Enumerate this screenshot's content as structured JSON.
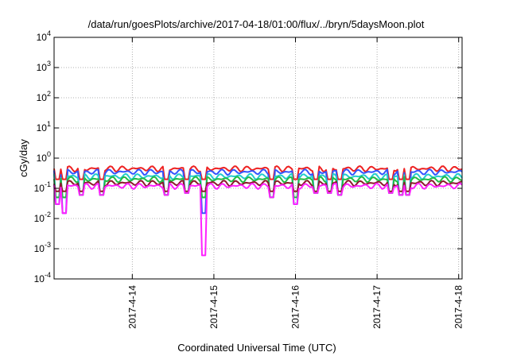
{
  "chart_data": {
    "type": "line",
    "title": "/data/run/goesPlots/archive/2017-04-18/01:00/flux/../bryn/5daysMoon.plot",
    "xlabel": "Coordinated Universal Time (UTC)",
    "ylabel": "cGy/day",
    "y_scale": "log",
    "ylim": [
      0.0001,
      10000
    ],
    "xlim": [
      "2017-04-13 01:00",
      "2017-04-18 01:00"
    ],
    "grid": true,
    "y_ticks": [
      {
        "value": 0.0001,
        "base": "10",
        "exp": "-4"
      },
      {
        "value": 0.001,
        "base": "10",
        "exp": "-3"
      },
      {
        "value": 0.01,
        "base": "10",
        "exp": "-2"
      },
      {
        "value": 0.1,
        "base": "10",
        "exp": "-1"
      },
      {
        "value": 1,
        "base": "10",
        "exp": "0"
      },
      {
        "value": 10,
        "base": "10",
        "exp": "1"
      },
      {
        "value": 100,
        "base": "10",
        "exp": "2"
      },
      {
        "value": 1000,
        "base": "10",
        "exp": "3"
      },
      {
        "value": 10000,
        "base": "10",
        "exp": "4"
      }
    ],
    "x_ticks": [
      {
        "value": "2017-04-14 00:00",
        "label": "2017-4-14"
      },
      {
        "value": "2017-04-15 00:00",
        "label": "2017-4-15"
      },
      {
        "value": "2017-04-16 00:00",
        "label": "2017-4-16"
      },
      {
        "value": "2017-04-17 00:00",
        "label": "2017-4-17"
      },
      {
        "value": "2017-04-18 00:00",
        "label": "2017-4-18"
      }
    ],
    "series": [
      {
        "color": "#ee2222",
        "baseline": 0.45,
        "dip_floor": 0.2
      },
      {
        "color": "#3355ff",
        "baseline": 0.35,
        "dip_floor": 0.015
      },
      {
        "color": "#22cccc",
        "baseline": 0.25,
        "dip_floor": 0.05
      },
      {
        "color": "#22bb44",
        "baseline": 0.2,
        "dip_floor": 0.05
      },
      {
        "color": "#8b1a2a",
        "baseline": 0.15,
        "dip_floor": 0.08
      },
      {
        "color": "#ff22ff",
        "baseline": 0.12,
        "dip_floor": 0.0006
      }
    ],
    "dips": [
      {
        "time": "2017-04-13 02:00",
        "min_value": 0.03
      },
      {
        "time": "2017-04-13 04:00",
        "min_value": 0.015
      },
      {
        "time": "2017-04-13 09:00",
        "min_value": 0.06
      },
      {
        "time": "2017-04-13 15:00",
        "min_value": 0.06
      },
      {
        "time": "2017-04-14 10:00",
        "min_value": 0.06
      },
      {
        "time": "2017-04-14 16:00",
        "min_value": 0.07
      },
      {
        "time": "2017-04-14 21:00",
        "min_value": 0.0006
      },
      {
        "time": "2017-04-15 17:00",
        "min_value": 0.05
      },
      {
        "time": "2017-04-16 00:00",
        "min_value": 0.03
      },
      {
        "time": "2017-04-16 06:00",
        "min_value": 0.07
      },
      {
        "time": "2017-04-16 10:00",
        "min_value": 0.07
      },
      {
        "time": "2017-04-16 13:00",
        "min_value": 0.06
      },
      {
        "time": "2017-04-17 04:00",
        "min_value": 0.07
      },
      {
        "time": "2017-04-17 07:00",
        "min_value": 0.06
      },
      {
        "time": "2017-04-17 09:00",
        "min_value": 0.06
      }
    ]
  }
}
